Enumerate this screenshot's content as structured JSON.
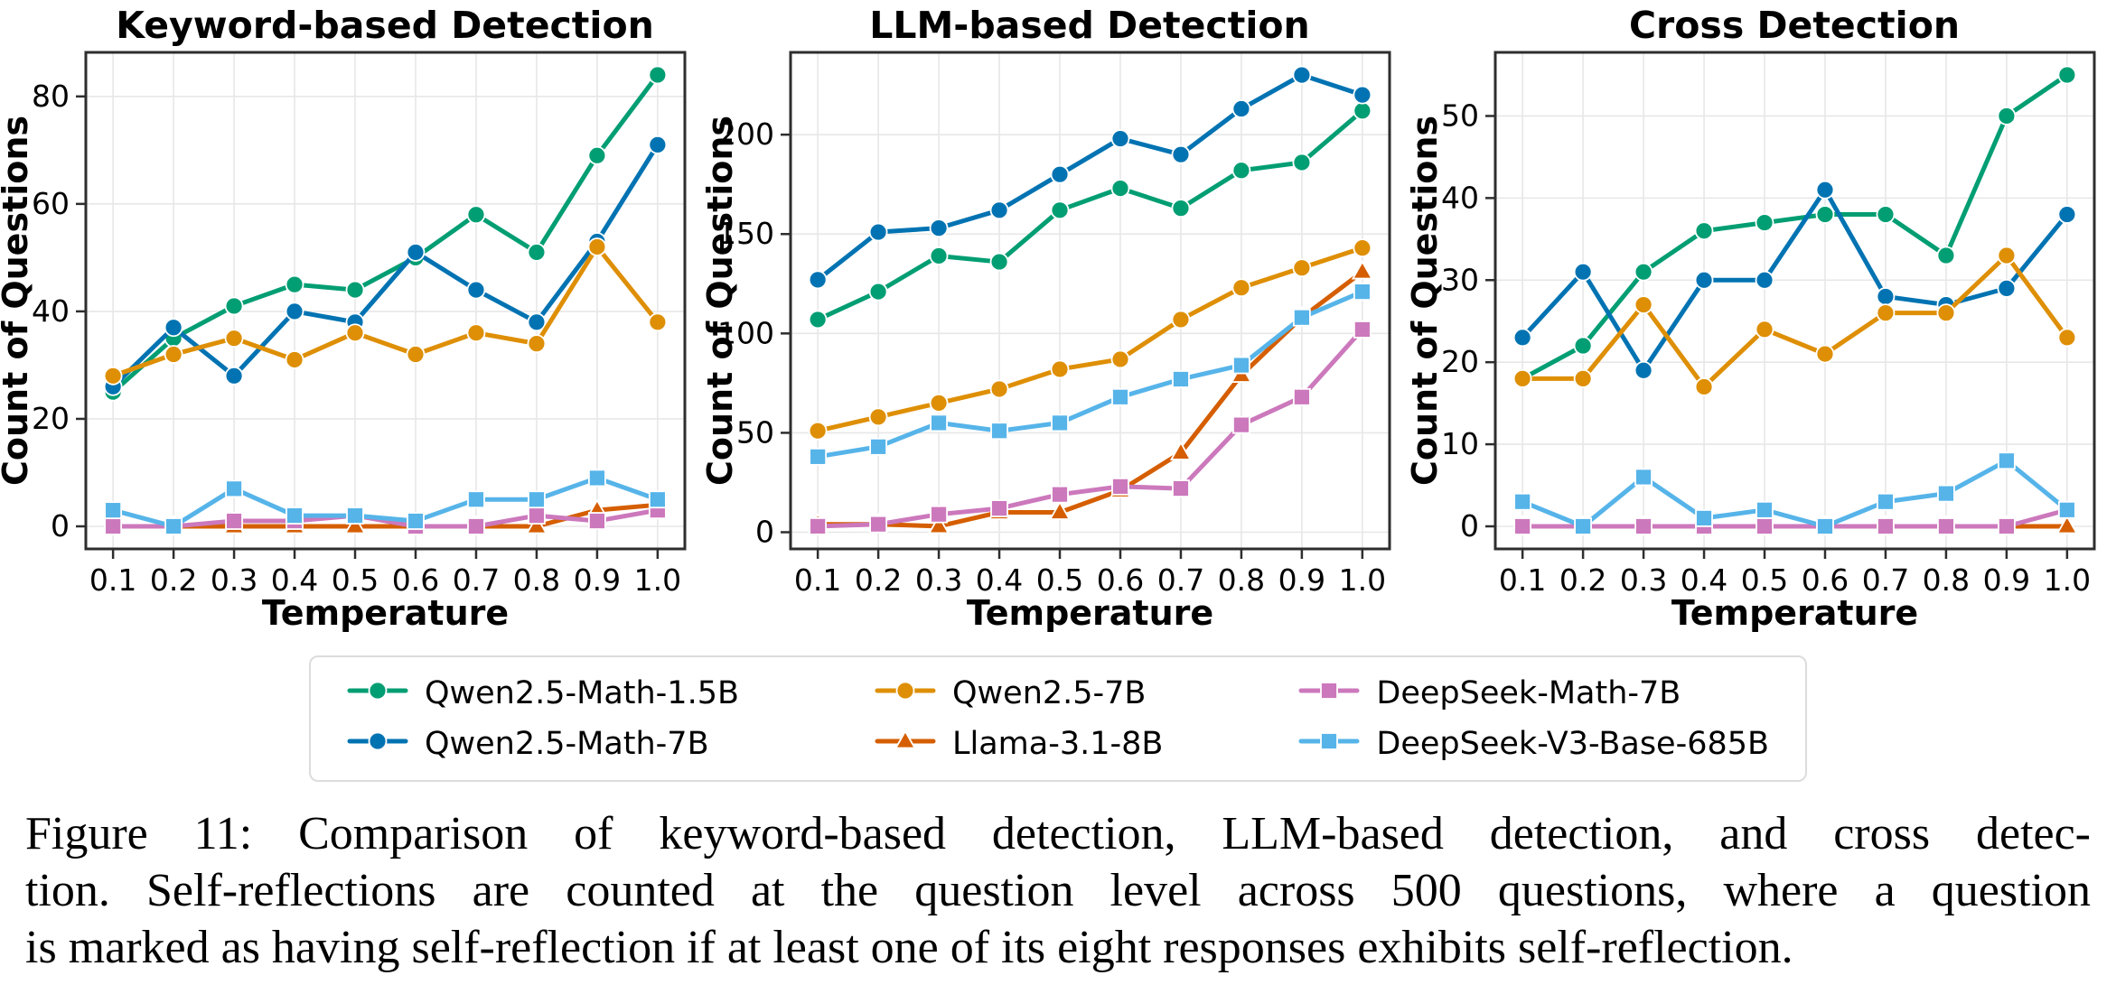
{
  "figure": {
    "caption": {
      "line1": "Figure 11: Comparison of keyword-based detection, LLM-based detection, and cross detec-",
      "line2": "tion. Self-reflections are counted at the question level across 500 questions, where a question",
      "line3": "is marked as having self-reflection if at least one of its eight responses exhibits self-reflection."
    }
  },
  "colors": {
    "green": "#029E73",
    "blue": "#0173B2",
    "orange": "#DE8F05",
    "red": "#D55E00",
    "pink": "#CC78BC",
    "lightblue": "#56B4E9",
    "spine": "#2e2e2e",
    "grid": "#e7e7e7"
  },
  "legend": {
    "entries": [
      {
        "label": "Qwen2.5-Math-1.5B",
        "color": "#029E73",
        "marker": "circle"
      },
      {
        "label": "Qwen2.5-7B",
        "color": "#DE8F05",
        "marker": "circle"
      },
      {
        "label": "DeepSeek-Math-7B",
        "color": "#CC78BC",
        "marker": "square"
      },
      {
        "label": "Qwen2.5-Math-7B",
        "color": "#0173B2",
        "marker": "circle"
      },
      {
        "label": "Llama-3.1-8B",
        "color": "#D55E00",
        "marker": "triangle"
      },
      {
        "label": "DeepSeek-V3-Base-685B",
        "color": "#56B4E9",
        "marker": "square"
      }
    ]
  },
  "chart_data": [
    {
      "type": "line",
      "title": "Keyword-based Detection",
      "xlabel": "Temperature",
      "ylabel": "Count of Questions",
      "x": [
        0.1,
        0.2,
        0.3,
        0.4,
        0.5,
        0.6,
        0.7,
        0.8,
        0.9,
        1.0
      ],
      "xtick_labels": [
        "0.1",
        "0.2",
        "0.3",
        "0.4",
        "0.5",
        "0.6",
        "0.7",
        "0.8",
        "0.9",
        "1.0"
      ],
      "xlim": [
        0.055,
        1.045
      ],
      "ylim": [
        -4.2,
        88.2
      ],
      "yticks": [
        0,
        20,
        40,
        60,
        80
      ],
      "grid": true,
      "series": [
        {
          "name": "Qwen2.5-Math-1.5B",
          "color": "#029E73",
          "marker": "circle",
          "values": [
            25,
            35,
            41,
            45,
            44,
            50,
            58,
            51,
            69,
            84
          ]
        },
        {
          "name": "Qwen2.5-Math-7B",
          "color": "#0173B2",
          "marker": "circle",
          "values": [
            26,
            37,
            28,
            40,
            38,
            51,
            44,
            38,
            53,
            71
          ]
        },
        {
          "name": "Qwen2.5-7B",
          "color": "#DE8F05",
          "marker": "circle",
          "values": [
            28,
            32,
            35,
            31,
            36,
            32,
            36,
            34,
            52,
            38
          ]
        },
        {
          "name": "Llama-3.1-8B",
          "color": "#D55E00",
          "marker": "triangle",
          "values": [
            0,
            0,
            0,
            0,
            0,
            0,
            0,
            0,
            3,
            4
          ]
        },
        {
          "name": "DeepSeek-Math-7B",
          "color": "#CC78BC",
          "marker": "square",
          "values": [
            0,
            0,
            1,
            1,
            2,
            0,
            0,
            2,
            1,
            3
          ]
        },
        {
          "name": "DeepSeek-V3-Base-685B",
          "color": "#56B4E9",
          "marker": "square",
          "values": [
            3,
            0,
            7,
            2,
            2,
            1,
            5,
            5,
            9,
            5
          ]
        }
      ]
    },
    {
      "type": "line",
      "title": "LLM-based Detection",
      "xlabel": "Temperature",
      "ylabel": "Count of Questions",
      "x": [
        0.1,
        0.2,
        0.3,
        0.4,
        0.5,
        0.6,
        0.7,
        0.8,
        0.9,
        1.0
      ],
      "xtick_labels": [
        "0.1",
        "0.2",
        "0.3",
        "0.4",
        "0.5",
        "0.6",
        "0.7",
        "0.8",
        "0.9",
        "1.0"
      ],
      "xlim": [
        0.055,
        1.045
      ],
      "ylim": [
        -8.4,
        241.4
      ],
      "yticks": [
        0,
        50,
        100,
        150,
        200
      ],
      "grid": true,
      "series": [
        {
          "name": "Qwen2.5-Math-1.5B",
          "color": "#029E73",
          "marker": "circle",
          "values": [
            107,
            121,
            139,
            136,
            162,
            173,
            163,
            182,
            186,
            212
          ]
        },
        {
          "name": "Qwen2.5-Math-7B",
          "color": "#0173B2",
          "marker": "circle",
          "values": [
            127,
            151,
            153,
            162,
            180,
            198,
            190,
            213,
            230,
            220
          ]
        },
        {
          "name": "Qwen2.5-7B",
          "color": "#DE8F05",
          "marker": "circle",
          "values": [
            51,
            58,
            65,
            72,
            82,
            87,
            107,
            123,
            133,
            143
          ]
        },
        {
          "name": "Llama-3.1-8B",
          "color": "#D55E00",
          "marker": "triangle",
          "values": [
            4,
            4,
            3,
            10,
            10,
            21,
            40,
            79,
            108,
            131
          ]
        },
        {
          "name": "DeepSeek-Math-7B",
          "color": "#CC78BC",
          "marker": "square",
          "values": [
            3,
            4,
            9,
            12,
            19,
            23,
            22,
            54,
            68,
            102
          ]
        },
        {
          "name": "DeepSeek-V3-Base-685B",
          "color": "#56B4E9",
          "marker": "square",
          "values": [
            38,
            43,
            55,
            51,
            55,
            68,
            77,
            84,
            108,
            121
          ]
        }
      ]
    },
    {
      "type": "line",
      "title": "Cross Detection",
      "xlabel": "Temperature",
      "ylabel": "Count of Questions",
      "x": [
        0.1,
        0.2,
        0.3,
        0.4,
        0.5,
        0.6,
        0.7,
        0.8,
        0.9,
        1.0
      ],
      "xtick_labels": [
        "0.1",
        "0.2",
        "0.3",
        "0.4",
        "0.5",
        "0.6",
        "0.7",
        "0.8",
        "0.9",
        "1.0"
      ],
      "xlim": [
        0.055,
        1.045
      ],
      "ylim": [
        -2.75,
        57.75
      ],
      "yticks": [
        0,
        10,
        20,
        30,
        40,
        50
      ],
      "grid": true,
      "series": [
        {
          "name": "Qwen2.5-Math-1.5B",
          "color": "#029E73",
          "marker": "circle",
          "values": [
            18,
            22,
            31,
            36,
            37,
            38,
            38,
            33,
            50,
            55
          ]
        },
        {
          "name": "Qwen2.5-Math-7B",
          "color": "#0173B2",
          "marker": "circle",
          "values": [
            23,
            31,
            19,
            30,
            30,
            41,
            28,
            27,
            29,
            38
          ]
        },
        {
          "name": "Qwen2.5-7B",
          "color": "#DE8F05",
          "marker": "circle",
          "values": [
            18,
            18,
            27,
            17,
            24,
            21,
            26,
            26,
            33,
            23
          ]
        },
        {
          "name": "Llama-3.1-8B",
          "color": "#D55E00",
          "marker": "triangle",
          "values": [
            0,
            0,
            0,
            0,
            0,
            0,
            0,
            0,
            0,
            0
          ]
        },
        {
          "name": "DeepSeek-Math-7B",
          "color": "#CC78BC",
          "marker": "square",
          "values": [
            0,
            0,
            0,
            0,
            0,
            0,
            0,
            0,
            0,
            2
          ]
        },
        {
          "name": "DeepSeek-V3-Base-685B",
          "color": "#56B4E9",
          "marker": "square",
          "values": [
            3,
            0,
            6,
            1,
            2,
            0,
            3,
            4,
            8,
            2
          ]
        }
      ]
    }
  ]
}
